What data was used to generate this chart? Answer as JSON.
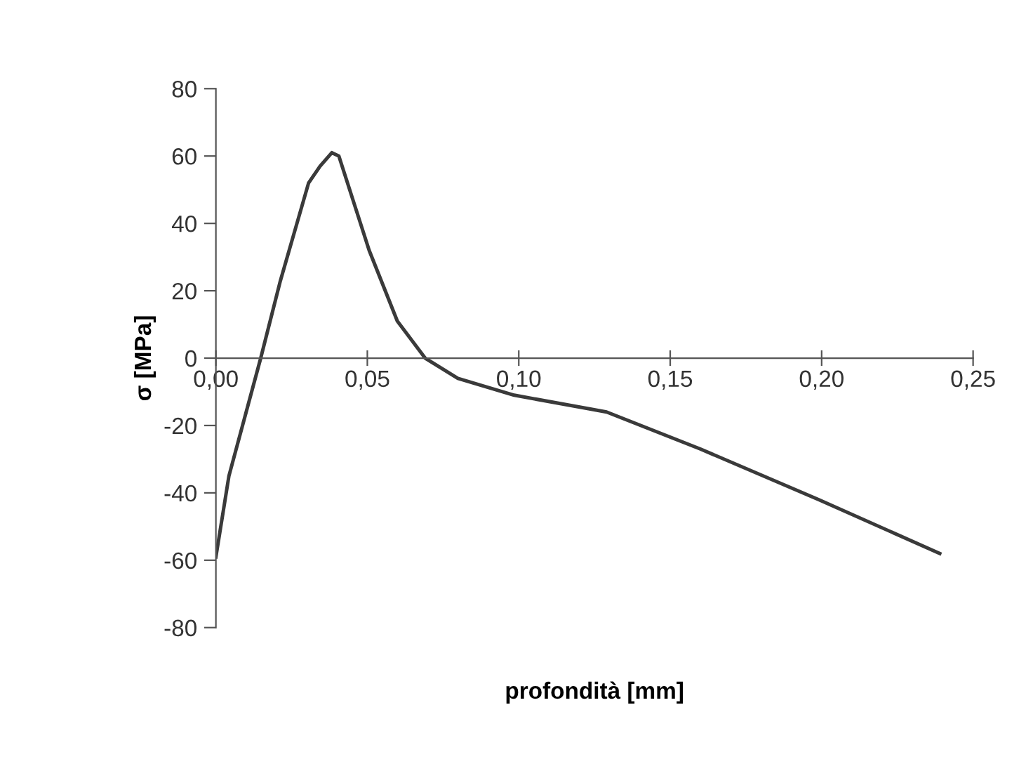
{
  "chart_data": {
    "type": "line",
    "xlabel": "profondità [mm]",
    "ylabel": "σ [MPa]",
    "series": [
      {
        "color": "#3a3a3a",
        "x": [
          0.0,
          0.0043,
          0.0148,
          0.0213,
          0.0306,
          0.0344,
          0.0383,
          0.0406,
          0.0506,
          0.0599,
          0.0691,
          0.0799,
          0.0985,
          0.123,
          0.129,
          0.16,
          0.199,
          0.239
        ],
        "values": [
          -59,
          -35,
          0,
          23,
          52,
          57,
          61,
          60,
          32,
          11,
          0,
          -6,
          -11,
          -15,
          -16,
          -27,
          -42,
          -58
        ]
      }
    ],
    "xlim": [
      0,
      0.25
    ],
    "ylim": [
      -80,
      80
    ],
    "xticks": [
      {
        "value": 0,
        "label": "0,00"
      },
      {
        "value": 0.05,
        "label": "0,05"
      },
      {
        "value": 0.1,
        "label": "0,10"
      },
      {
        "value": 0.15,
        "label": "0,15"
      },
      {
        "value": 0.2,
        "label": "0,20"
      },
      {
        "value": 0.25,
        "label": "0,25"
      }
    ],
    "yticks": [
      -80,
      -60,
      -40,
      -20,
      0,
      20,
      40,
      60,
      80
    ],
    "grid": false,
    "legend": false,
    "marker": "none",
    "line_style": "solid"
  }
}
